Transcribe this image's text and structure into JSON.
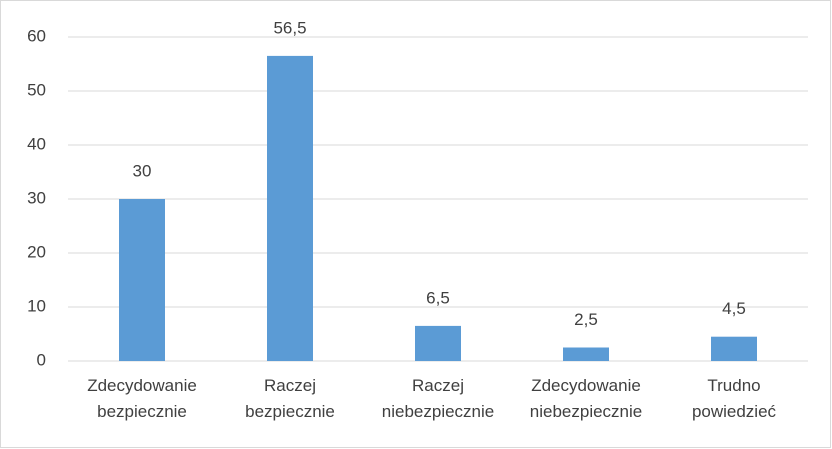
{
  "chart_data": {
    "type": "bar",
    "categories": [
      [
        "Zdecydowanie",
        "bezpiecznie"
      ],
      [
        "Raczej",
        "bezpiecznie"
      ],
      [
        "Raczej",
        "niebezpiecznie"
      ],
      [
        "Zdecydowanie",
        "niebezpiecznie"
      ],
      [
        "Trudno",
        "powiedzieć"
      ]
    ],
    "values": [
      30,
      56.5,
      6.5,
      2.5,
      4.5
    ],
    "value_labels": [
      "30",
      "56,5",
      "6,5",
      "2,5",
      "4,5"
    ],
    "color": "#5b9bd5",
    "ylim": [
      0,
      60
    ],
    "yticks": [
      0,
      10,
      20,
      30,
      40,
      50,
      60
    ],
    "grid": true
  }
}
